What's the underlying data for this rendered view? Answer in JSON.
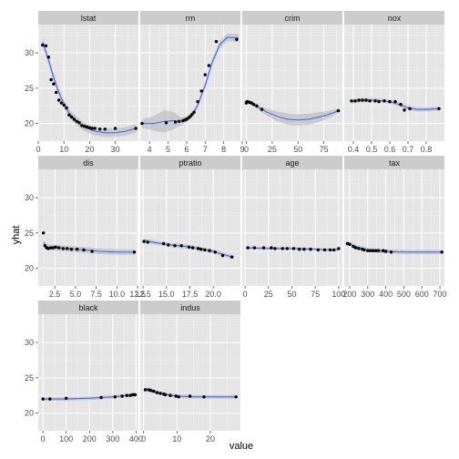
{
  "colors": {
    "panel_bg": "#e5e5e5",
    "strip_bg": "#cccccc",
    "grid_major": "#ffffff",
    "grid_minor": "#f2f2f2",
    "line": "#3366ff",
    "ribbon": "#b3b3b3",
    "point": "#000000",
    "tick": "#4d4d4d"
  },
  "chart_data": {
    "type": "scatter",
    "facet": "wrap",
    "ncol": 4,
    "xlabel": "value",
    "ylabel": "yhat",
    "ylim": [
      17.5,
      34
    ],
    "y_ticks": [
      20,
      25,
      30
    ],
    "grid": true,
    "smoother": "loess with confidence ribbon",
    "panels": [
      {
        "name": "lstat",
        "xlim": [
          0,
          39
        ],
        "x_ticks": [
          0,
          10,
          20,
          30
        ],
        "x_tick_labels": [
          "0",
          "10",
          "20",
          "30"
        ],
        "points": [
          [
            1.7,
            31.1
          ],
          [
            3,
            31
          ],
          [
            4,
            29.4
          ],
          [
            5,
            26.2
          ],
          [
            6,
            25.6
          ],
          [
            7,
            24.4
          ],
          [
            8,
            23.3
          ],
          [
            9,
            22.9
          ],
          [
            10,
            22.6
          ],
          [
            11,
            22.2
          ],
          [
            12,
            21.2
          ],
          [
            13,
            20.9
          ],
          [
            14,
            20.6
          ],
          [
            15,
            20.3
          ],
          [
            16,
            20.1
          ],
          [
            17,
            19.7
          ],
          [
            18,
            19.6
          ],
          [
            19,
            19.5
          ],
          [
            20,
            19.4
          ],
          [
            21,
            19.3
          ],
          [
            22,
            19.3
          ],
          [
            24,
            19.2
          ],
          [
            26,
            19.2
          ],
          [
            30,
            19.3
          ],
          [
            38,
            19.3
          ]
        ],
        "fit": [
          [
            1.7,
            31.5
          ],
          [
            4,
            29
          ],
          [
            6,
            26.5
          ],
          [
            8,
            24.4
          ],
          [
            10,
            22.8
          ],
          [
            12,
            21.5
          ],
          [
            15,
            20.3
          ],
          [
            18,
            19.5
          ],
          [
            22,
            18.9
          ],
          [
            26,
            18.7
          ],
          [
            30,
            18.7
          ],
          [
            34,
            18.9
          ],
          [
            38,
            19.3
          ]
        ],
        "band": 0.6
      },
      {
        "name": "rm",
        "xlim": [
          3.5,
          8.9
        ],
        "x_ticks": [
          4,
          5,
          6,
          7,
          8,
          9
        ],
        "x_tick_labels": [
          "4",
          "5",
          "6",
          "7",
          "8",
          "9"
        ],
        "points": [
          [
            3.6,
            20
          ],
          [
            4.9,
            20.1
          ],
          [
            5.4,
            20.2
          ],
          [
            5.6,
            20.3
          ],
          [
            5.8,
            20.4
          ],
          [
            5.9,
            20.5
          ],
          [
            6,
            20.6
          ],
          [
            6.1,
            20.8
          ],
          [
            6.2,
            21
          ],
          [
            6.3,
            21.3
          ],
          [
            6.4,
            21.6
          ],
          [
            6.6,
            23.1
          ],
          [
            6.8,
            24.6
          ],
          [
            7,
            26.9
          ],
          [
            7.2,
            28.2
          ],
          [
            7.6,
            31.6
          ],
          [
            8.7,
            31.9
          ]
        ],
        "fit": [
          [
            3.6,
            20
          ],
          [
            4.2,
            20
          ],
          [
            4.8,
            20.3
          ],
          [
            5.3,
            20.4
          ],
          [
            5.7,
            20.3
          ],
          [
            6,
            20.6
          ],
          [
            6.3,
            21.2
          ],
          [
            6.6,
            22.6
          ],
          [
            7,
            25.4
          ],
          [
            7.4,
            28.8
          ],
          [
            7.8,
            31.2
          ],
          [
            8.2,
            32.2
          ],
          [
            8.8,
            32.1
          ]
        ],
        "band_list": [
          [
            3.6,
            0.6
          ],
          [
            4.2,
            1.0
          ],
          [
            4.8,
            1.6
          ],
          [
            5.3,
            1.2
          ],
          [
            5.7,
            0.6
          ],
          [
            6.2,
            0.3
          ],
          [
            7,
            0.5
          ],
          [
            7.8,
            0.5
          ],
          [
            8.8,
            0.6
          ]
        ]
      },
      {
        "name": "crim",
        "xlim": [
          -4,
          93
        ],
        "x_ticks": [
          0,
          25,
          50,
          75
        ],
        "x_tick_labels": [
          "0",
          "25",
          "50",
          "75"
        ],
        "points": [
          [
            0.01,
            22.9
          ],
          [
            0.1,
            23
          ],
          [
            0.3,
            23
          ],
          [
            1,
            23.1
          ],
          [
            3,
            23
          ],
          [
            5,
            22.9
          ],
          [
            7,
            22.7
          ],
          [
            10,
            22.5
          ],
          [
            15,
            22
          ],
          [
            89,
            21.8
          ]
        ],
        "fit": [
          [
            0,
            23.1
          ],
          [
            5,
            22.9
          ],
          [
            10,
            22.4
          ],
          [
            20,
            21.6
          ],
          [
            30,
            21
          ],
          [
            40,
            20.6
          ],
          [
            50,
            20.5
          ],
          [
            60,
            20.6
          ],
          [
            70,
            20.9
          ],
          [
            80,
            21.3
          ],
          [
            89,
            21.8
          ]
        ],
        "band_list": [
          [
            0,
            0.3
          ],
          [
            10,
            0.3
          ],
          [
            20,
            0.5
          ],
          [
            35,
            0.8
          ],
          [
            50,
            0.8
          ],
          [
            65,
            0.8
          ],
          [
            80,
            0.5
          ],
          [
            89,
            0.3
          ]
        ]
      },
      {
        "name": "nox",
        "xlim": [
          0.35,
          0.9
        ],
        "x_ticks": [
          0.4,
          0.5,
          0.6,
          0.7,
          0.8
        ],
        "x_tick_labels": [
          "0.4",
          "0.5",
          "0.6",
          "0.7",
          "0.8"
        ],
        "points": [
          [
            0.39,
            23.2
          ],
          [
            0.41,
            23.2
          ],
          [
            0.43,
            23.3
          ],
          [
            0.45,
            23.3
          ],
          [
            0.47,
            23.3
          ],
          [
            0.49,
            23.2
          ],
          [
            0.52,
            23.2
          ],
          [
            0.54,
            23.1
          ],
          [
            0.57,
            23.2
          ],
          [
            0.6,
            23.1
          ],
          [
            0.63,
            23.1
          ],
          [
            0.66,
            22.7
          ],
          [
            0.68,
            21.9
          ],
          [
            0.71,
            22.1
          ],
          [
            0.87,
            22.1
          ]
        ],
        "fit": [
          [
            0.39,
            23.1
          ],
          [
            0.45,
            23.3
          ],
          [
            0.52,
            23.3
          ],
          [
            0.6,
            23.1
          ],
          [
            0.65,
            22.7
          ],
          [
            0.7,
            22.2
          ],
          [
            0.75,
            22
          ],
          [
            0.8,
            22
          ],
          [
            0.87,
            22.1
          ]
        ],
        "band": 0.3
      },
      {
        "name": "dis",
        "xlim": [
          0.5,
          12.6
        ],
        "x_ticks": [
          2.5,
          5,
          7.5,
          10,
          12.5
        ],
        "x_tick_labels": [
          "2.5",
          "5.0",
          "7.5",
          "10.0",
          "12.5"
        ],
        "points": [
          [
            1.13,
            25
          ],
          [
            1.3,
            23.2
          ],
          [
            1.5,
            22.9
          ],
          [
            1.7,
            22.8
          ],
          [
            2,
            22.9
          ],
          [
            2.3,
            22.9
          ],
          [
            2.6,
            23
          ],
          [
            3,
            22.9
          ],
          [
            3.5,
            22.8
          ],
          [
            4,
            22.8
          ],
          [
            4.5,
            22.7
          ],
          [
            5.2,
            22.7
          ],
          [
            6,
            22.6
          ],
          [
            7,
            22.4
          ],
          [
            12.1,
            22.3
          ]
        ],
        "fit": [
          [
            1.13,
            23.6
          ],
          [
            1.6,
            23
          ],
          [
            2.5,
            22.9
          ],
          [
            4,
            22.8
          ],
          [
            6,
            22.6
          ],
          [
            8,
            22.4
          ],
          [
            10,
            22.3
          ],
          [
            12.1,
            22.3
          ]
        ],
        "band": 0.4
      },
      {
        "name": "ptratio",
        "xlim": [
          12.2,
          22.9
        ],
        "x_ticks": [
          12.5,
          15,
          17.5,
          20
        ],
        "x_tick_labels": [
          "12.5",
          "15.0",
          "17.5",
          "20.0"
        ],
        "points": [
          [
            12.6,
            23.8
          ],
          [
            13,
            23.7
          ],
          [
            14.7,
            23.5
          ],
          [
            15.2,
            23.3
          ],
          [
            15.9,
            23.2
          ],
          [
            16.6,
            23.2
          ],
          [
            17.4,
            23
          ],
          [
            17.8,
            22.9
          ],
          [
            18.4,
            22.8
          ],
          [
            18.7,
            22.7
          ],
          [
            19.1,
            22.6
          ],
          [
            19.6,
            22.5
          ],
          [
            20.2,
            22.3
          ],
          [
            21,
            21.8
          ],
          [
            22,
            21.6
          ]
        ],
        "fit": [
          [
            12.6,
            23.9
          ],
          [
            14,
            23.6
          ],
          [
            15.5,
            23.3
          ],
          [
            17,
            23.1
          ],
          [
            18.5,
            22.8
          ],
          [
            20,
            22.4
          ],
          [
            21,
            22
          ],
          [
            22,
            21.6
          ]
        ],
        "band": 0.3
      },
      {
        "name": "age",
        "xlim": [
          -3,
          104
        ],
        "x_ticks": [
          0,
          25,
          50,
          75,
          100
        ],
        "x_tick_labels": [
          "0",
          "25",
          "50",
          "75",
          "100"
        ],
        "points": [
          [
            2.9,
            22.9
          ],
          [
            10,
            22.9
          ],
          [
            20,
            22.9
          ],
          [
            28,
            22.9
          ],
          [
            32,
            22.8
          ],
          [
            40,
            22.8
          ],
          [
            45,
            22.8
          ],
          [
            52,
            22.8
          ],
          [
            58,
            22.7
          ],
          [
            63,
            22.7
          ],
          [
            70,
            22.7
          ],
          [
            78,
            22.6
          ],
          [
            85,
            22.6
          ],
          [
            91,
            22.6
          ],
          [
            95,
            22.6
          ],
          [
            100,
            22.8
          ]
        ],
        "fit": [
          [
            2.9,
            22.9
          ],
          [
            25,
            22.8
          ],
          [
            50,
            22.8
          ],
          [
            75,
            22.7
          ],
          [
            95,
            22.6
          ],
          [
            100,
            22.7
          ]
        ],
        "band": 0.2
      },
      {
        "name": "tax",
        "xlim": [
          170,
          725
        ],
        "x_ticks": [
          200,
          300,
          400,
          500,
          600,
          700
        ],
        "x_tick_labels": [
          "200",
          "300",
          "400",
          "500",
          "600",
          "700"
        ],
        "points": [
          [
            187,
            23.5
          ],
          [
            200,
            23.4
          ],
          [
            220,
            23.1
          ],
          [
            233,
            22.9
          ],
          [
            250,
            22.8
          ],
          [
            270,
            22.7
          ],
          [
            280,
            22.6
          ],
          [
            300,
            22.5
          ],
          [
            315,
            22.5
          ],
          [
            330,
            22.5
          ],
          [
            345,
            22.5
          ],
          [
            360,
            22.5
          ],
          [
            385,
            22.5
          ],
          [
            400,
            22.4
          ],
          [
            430,
            22.3
          ],
          [
            711,
            22.3
          ]
        ],
        "fit": [
          [
            187,
            23.6
          ],
          [
            230,
            23.1
          ],
          [
            300,
            22.6
          ],
          [
            400,
            22.4
          ],
          [
            500,
            22.3
          ],
          [
            600,
            22.3
          ],
          [
            711,
            22.3
          ]
        ],
        "band": 0.3
      },
      {
        "name": "black",
        "xlim": [
          -20,
          410
        ],
        "x_ticks": [
          0,
          100,
          200,
          300,
          400
        ],
        "x_tick_labels": [
          "0",
          "100",
          "200",
          "300",
          "400"
        ],
        "points": [
          [
            0.3,
            22
          ],
          [
            30,
            22
          ],
          [
            100,
            22.1
          ],
          [
            250,
            22.2
          ],
          [
            310,
            22.3
          ],
          [
            340,
            22.4
          ],
          [
            360,
            22.5
          ],
          [
            375,
            22.5
          ],
          [
            385,
            22.6
          ],
          [
            390,
            22.6
          ],
          [
            396,
            22.6
          ]
        ],
        "fit": [
          [
            0.3,
            22
          ],
          [
            100,
            22
          ],
          [
            200,
            22.1
          ],
          [
            300,
            22.3
          ],
          [
            396,
            22.6
          ]
        ],
        "band": 0.25
      },
      {
        "name": "indus",
        "xlim": [
          -1,
          29
        ],
        "x_ticks": [
          0,
          10,
          20
        ],
        "x_tick_labels": [
          "0",
          "10",
          "20"
        ],
        "points": [
          [
            0.5,
            23.3
          ],
          [
            1.5,
            23.3
          ],
          [
            2.2,
            23.2
          ],
          [
            3,
            23.1
          ],
          [
            4,
            22.9
          ],
          [
            5,
            22.8
          ],
          [
            6,
            22.7
          ],
          [
            6.5,
            22.6
          ],
          [
            8,
            22.5
          ],
          [
            9.7,
            22.4
          ],
          [
            10.5,
            22.3
          ],
          [
            13.9,
            22.4
          ],
          [
            18.1,
            22.3
          ],
          [
            27.7,
            22.3
          ]
        ],
        "fit": [
          [
            0.5,
            23.4
          ],
          [
            3,
            23.1
          ],
          [
            6,
            22.7
          ],
          [
            10,
            22.4
          ],
          [
            15,
            22.3
          ],
          [
            20,
            22.3
          ],
          [
            27.7,
            22.3
          ]
        ],
        "band": 0.25
      }
    ]
  }
}
